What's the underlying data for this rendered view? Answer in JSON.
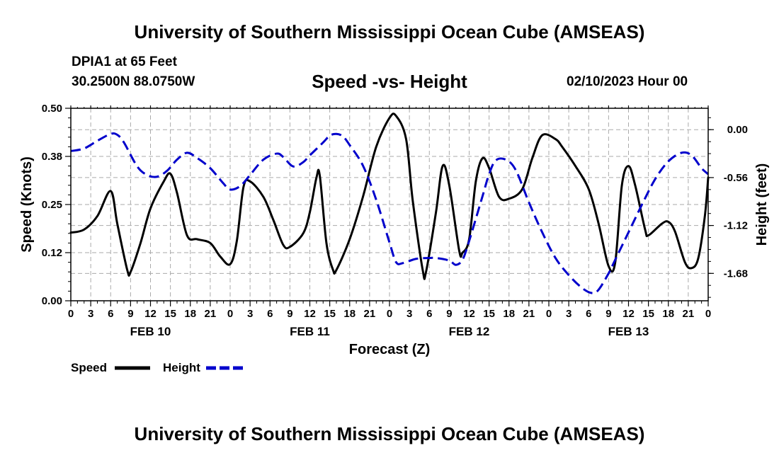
{
  "header": {
    "main_title": "University of Southern Mississippi Ocean Cube (AMSEAS)",
    "station": "DPIA1 at 65 Feet",
    "coords": "30.2500N  88.0750W",
    "subtitle": "Speed -vs- Height",
    "datetime": "02/10/2023 Hour 00"
  },
  "footer": {
    "title": "University of Southern Mississippi Ocean Cube (AMSEAS)"
  },
  "colors": {
    "speed": "#000000",
    "height": "#0000cc",
    "grid": "#aaaaaa"
  },
  "chart_data": {
    "type": "line",
    "xlabel": "Forecast (Z)",
    "ylabel_left": "Speed (Knots)",
    "ylabel_right": "Height (feet)",
    "x_range_hours": [
      0,
      96
    ],
    "x_tick_step_hours": 3,
    "x_tick_labels": [
      "0",
      "3",
      "6",
      "9",
      "12",
      "15",
      "18",
      "21",
      "0",
      "3",
      "6",
      "9",
      "12",
      "15",
      "18",
      "21",
      "0",
      "3",
      "6",
      "9",
      "12",
      "15",
      "18",
      "21",
      "0",
      "3",
      "6",
      "9",
      "12",
      "15",
      "18",
      "21",
      "0"
    ],
    "date_labels": [
      {
        "label": "FEB 10",
        "hour": 12
      },
      {
        "label": "FEB 11",
        "hour": 36
      },
      {
        "label": "FEB 12",
        "hour": 60
      },
      {
        "label": "FEB 13",
        "hour": 84
      }
    ],
    "y_left": {
      "range": [
        0,
        0.5
      ],
      "ticks": [
        0,
        0.125,
        0.25,
        0.375,
        0.5
      ],
      "tick_labels": [
        "0.00",
        "0.12",
        "0.25",
        "0.38",
        "0.50"
      ]
    },
    "y_right": {
      "range": [
        -2.0,
        0.25
      ],
      "ticks": [
        0.0,
        -0.56,
        -1.12,
        -1.68
      ],
      "tick_labels": [
        "0.00",
        "-0.56",
        "-1.12",
        "-1.68"
      ]
    },
    "legend": [
      {
        "name": "Speed",
        "style": "solid"
      },
      {
        "name": "Height",
        "style": "dashed"
      }
    ],
    "series": [
      {
        "name": "Speed",
        "axis": "left",
        "points": [
          [
            0,
            0.177
          ],
          [
            2,
            0.185
          ],
          [
            4,
            0.22
          ],
          [
            6,
            0.285
          ],
          [
            7,
            0.2
          ],
          [
            8.5,
            0.08
          ],
          [
            9,
            0.075
          ],
          [
            10.5,
            0.15
          ],
          [
            12,
            0.24
          ],
          [
            14,
            0.31
          ],
          [
            15,
            0.33
          ],
          [
            16,
            0.28
          ],
          [
            17.5,
            0.17
          ],
          [
            19,
            0.16
          ],
          [
            21,
            0.15
          ],
          [
            22.5,
            0.115
          ],
          [
            24,
            0.095
          ],
          [
            25,
            0.155
          ],
          [
            26,
            0.295
          ],
          [
            27,
            0.31
          ],
          [
            29,
            0.27
          ],
          [
            30.5,
            0.21
          ],
          [
            32,
            0.145
          ],
          [
            33,
            0.14
          ],
          [
            35,
            0.175
          ],
          [
            36,
            0.23
          ],
          [
            37,
            0.32
          ],
          [
            37.5,
            0.325
          ],
          [
            38.5,
            0.15
          ],
          [
            39.5,
            0.08
          ],
          [
            40,
            0.08
          ],
          [
            42,
            0.16
          ],
          [
            44,
            0.27
          ],
          [
            46,
            0.4
          ],
          [
            48,
            0.475
          ],
          [
            49,
            0.48
          ],
          [
            50.5,
            0.42
          ],
          [
            51.5,
            0.26
          ],
          [
            53,
            0.08
          ],
          [
            53.5,
            0.075
          ],
          [
            55,
            0.23
          ],
          [
            56,
            0.35
          ],
          [
            57,
            0.3
          ],
          [
            58.5,
            0.13
          ],
          [
            59,
            0.125
          ],
          [
            60,
            0.16
          ],
          [
            61,
            0.31
          ],
          [
            62,
            0.37
          ],
          [
            63,
            0.345
          ],
          [
            64.5,
            0.27
          ],
          [
            66,
            0.265
          ],
          [
            68,
            0.29
          ],
          [
            69.5,
            0.37
          ],
          [
            71,
            0.43
          ],
          [
            73,
            0.42
          ],
          [
            74,
            0.4
          ],
          [
            76,
            0.35
          ],
          [
            78,
            0.29
          ],
          [
            79.5,
            0.2
          ],
          [
            81,
            0.09
          ],
          [
            82,
            0.1
          ],
          [
            83,
            0.3
          ],
          [
            84,
            0.35
          ],
          [
            85,
            0.3
          ],
          [
            86.5,
            0.185
          ],
          [
            87,
            0.17
          ],
          [
            89,
            0.2
          ],
          [
            90,
            0.205
          ],
          [
            91,
            0.18
          ],
          [
            92.5,
            0.1
          ],
          [
            93.5,
            0.085
          ],
          [
            94.5,
            0.11
          ],
          [
            95.5,
            0.22
          ],
          [
            96,
            0.32
          ]
        ]
      },
      {
        "name": "Height",
        "axis": "right",
        "points": [
          [
            0,
            -0.25
          ],
          [
            2,
            -0.22
          ],
          [
            4,
            -0.13
          ],
          [
            6,
            -0.05
          ],
          [
            7,
            -0.06
          ],
          [
            8,
            -0.15
          ],
          [
            10,
            -0.43
          ],
          [
            11.5,
            -0.53
          ],
          [
            13,
            -0.55
          ],
          [
            14.5,
            -0.48
          ],
          [
            16,
            -0.35
          ],
          [
            17.5,
            -0.27
          ],
          [
            19,
            -0.33
          ],
          [
            21,
            -0.45
          ],
          [
            23,
            -0.63
          ],
          [
            24,
            -0.7
          ],
          [
            25.5,
            -0.66
          ],
          [
            27,
            -0.53
          ],
          [
            29,
            -0.35
          ],
          [
            31,
            -0.28
          ],
          [
            32,
            -0.32
          ],
          [
            33.5,
            -0.43
          ],
          [
            35,
            -0.38
          ],
          [
            36,
            -0.3
          ],
          [
            38,
            -0.15
          ],
          [
            39,
            -0.07
          ],
          [
            40,
            -0.05
          ],
          [
            41,
            -0.08
          ],
          [
            42,
            -0.18
          ],
          [
            44,
            -0.42
          ],
          [
            46,
            -0.82
          ],
          [
            48,
            -1.32
          ],
          [
            49,
            -1.55
          ],
          [
            50,
            -1.56
          ],
          [
            52,
            -1.51
          ],
          [
            54,
            -1.5
          ],
          [
            55,
            -1.5
          ],
          [
            57,
            -1.53
          ],
          [
            58,
            -1.58
          ],
          [
            59,
            -1.52
          ],
          [
            60,
            -1.3
          ],
          [
            62,
            -0.78
          ],
          [
            63,
            -0.52
          ],
          [
            64,
            -0.36
          ],
          [
            65.5,
            -0.35
          ],
          [
            67,
            -0.47
          ],
          [
            69,
            -0.85
          ],
          [
            71,
            -1.2
          ],
          [
            73,
            -1.5
          ],
          [
            75,
            -1.7
          ],
          [
            77,
            -1.85
          ],
          [
            78.5,
            -1.91
          ],
          [
            79.5,
            -1.87
          ],
          [
            81,
            -1.68
          ],
          [
            82,
            -1.52
          ],
          [
            84,
            -1.2
          ],
          [
            86,
            -0.88
          ],
          [
            88,
            -0.58
          ],
          [
            90,
            -0.37
          ],
          [
            92,
            -0.27
          ],
          [
            93.5,
            -0.3
          ],
          [
            95,
            -0.45
          ],
          [
            96,
            -0.52
          ]
        ]
      }
    ]
  }
}
